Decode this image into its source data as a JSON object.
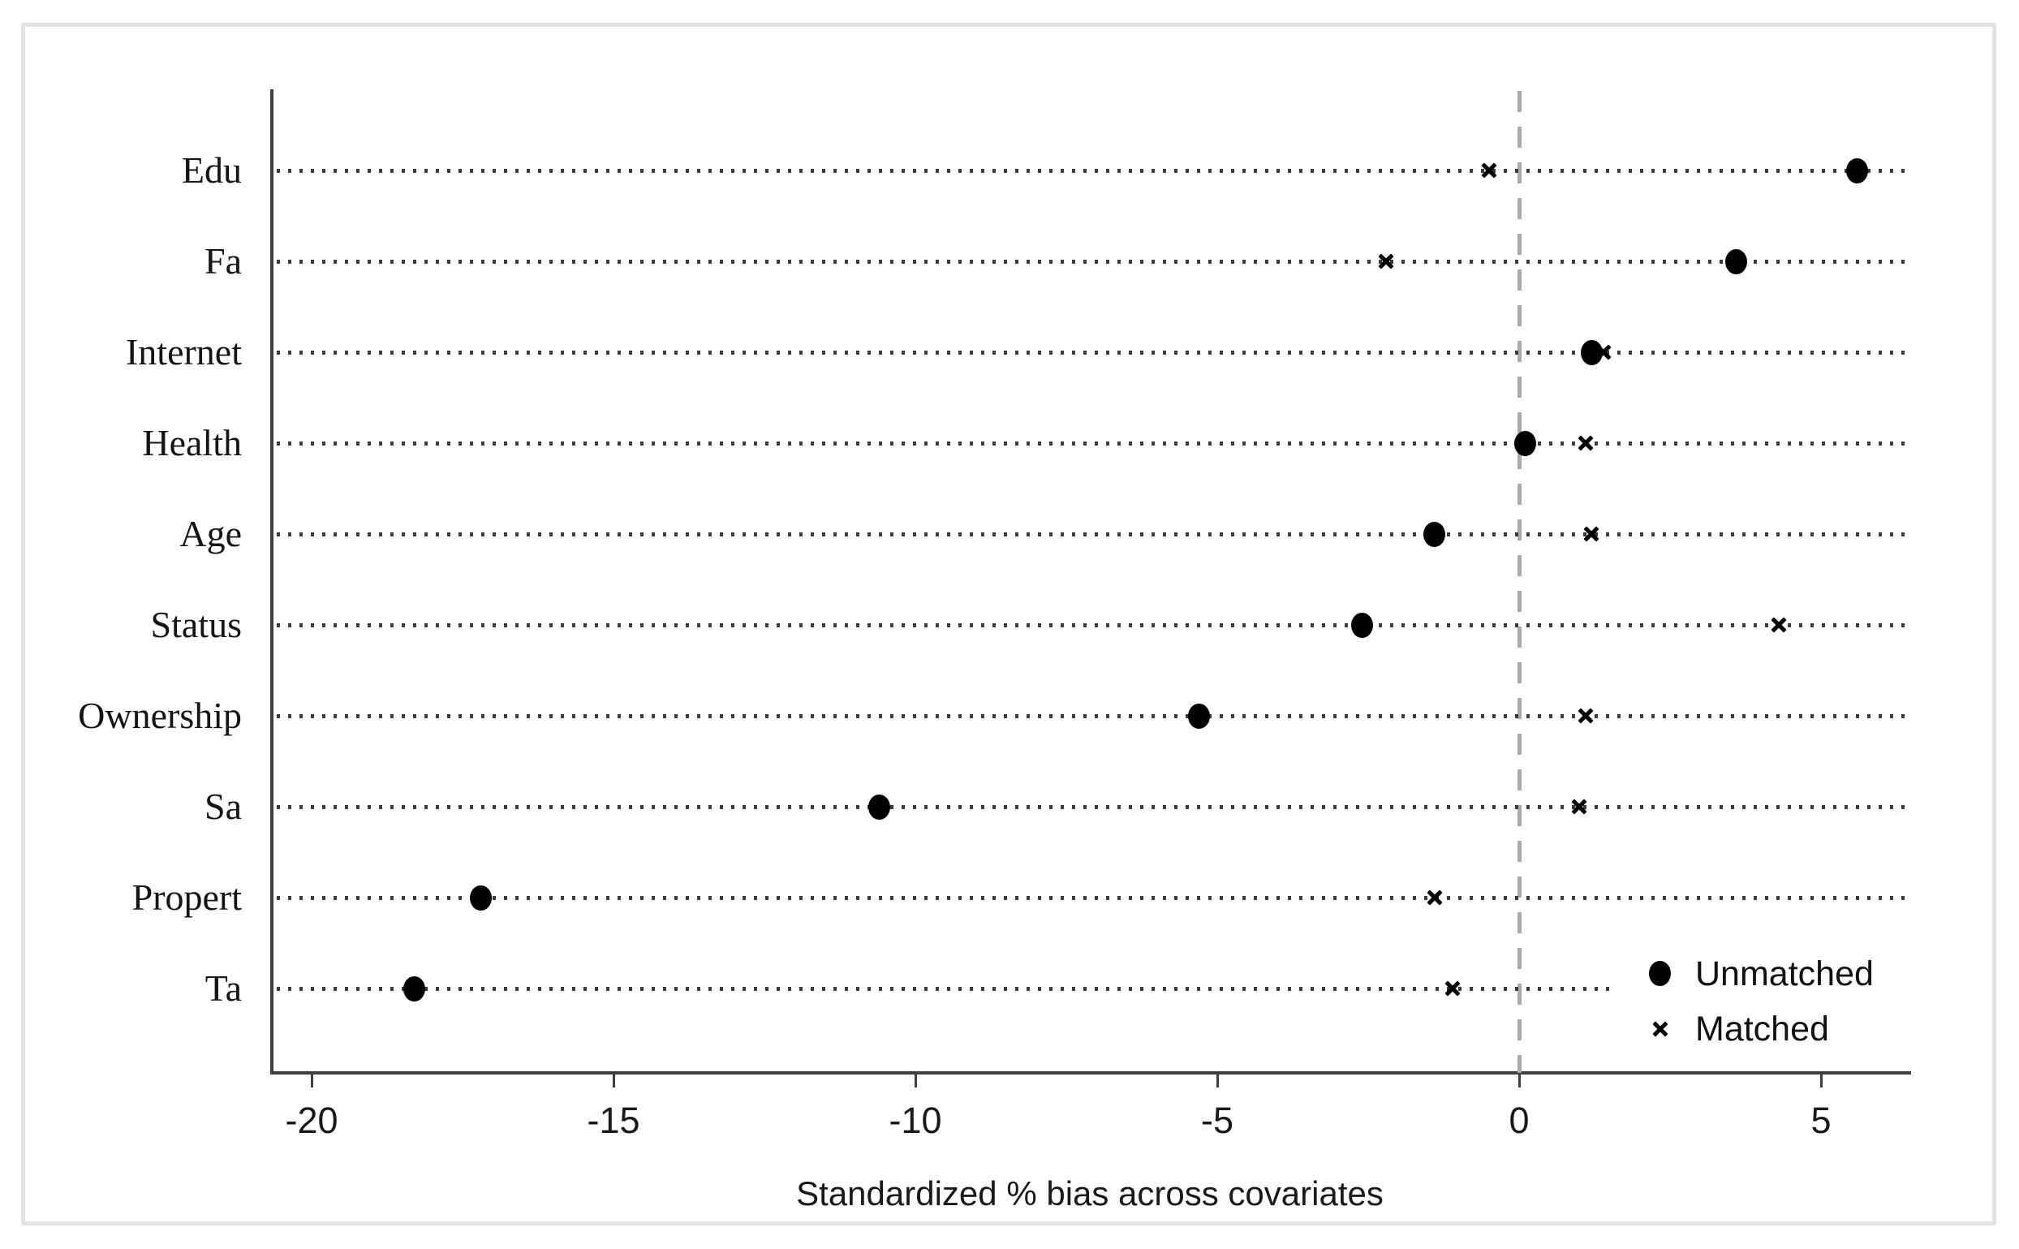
{
  "figure": {
    "background_color": "#ffffff",
    "frame_border_color": "#e3e3e3",
    "marker_color": "#000000",
    "zero_line_color": "#ababab",
    "grid_dot_color": "#3a3a3a",
    "axis_color": "#3f3f3f"
  },
  "chart_data": {
    "type": "scatter",
    "subtype": "dot-plot-covariate-balance",
    "title": "",
    "xlabel": "Standardized % bias across covariates",
    "ylabel": "",
    "categories": [
      "Edu",
      "Fa",
      "Internet",
      "Health",
      "Age",
      "Status",
      "Ownership",
      "Sa",
      "Propert",
      "Ta"
    ],
    "series": [
      {
        "name": "Unmatched",
        "marker": "filled-circle",
        "values": [
          5.6,
          3.6,
          1.2,
          0.1,
          -1.4,
          -2.6,
          -5.3,
          -10.6,
          -17.2,
          -18.3
        ]
      },
      {
        "name": "Matched",
        "marker": "x-cross",
        "values": [
          -0.5,
          -2.2,
          1.4,
          1.1,
          1.2,
          4.3,
          1.1,
          1.0,
          -1.4,
          -1.1
        ]
      }
    ],
    "x_ticks": [
      -20,
      -15,
      -10,
      -5,
      0,
      5
    ],
    "xlim": [
      -20.7,
      6.5
    ],
    "zero_reference_line": 0,
    "grid": "dotted horizontal line per category",
    "legend_position": "inside-bottom-right",
    "legend_entries": [
      "Unmatched",
      "Matched"
    ]
  }
}
